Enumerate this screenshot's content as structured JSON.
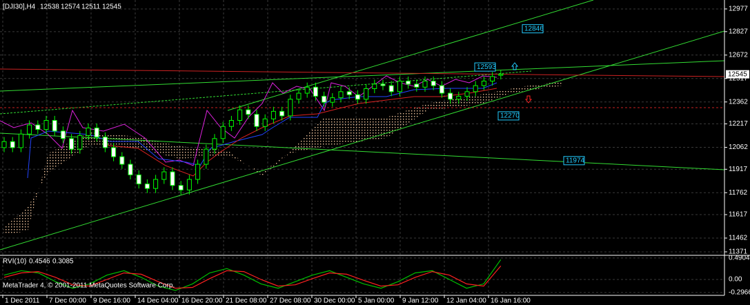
{
  "chart_data": {
    "type": "candlestick",
    "header": {
      "symbol": "[DJI30],H4",
      "open": 12538,
      "high": 12574,
      "low": 12511,
      "close": 12545
    },
    "x_labels": [
      "1 Dec 2011",
      "7 Dec 00:00",
      "9 Dec 16:00",
      "14 Dec 04:00",
      "16 Dec 20:00",
      "21 Dec 08:00",
      "27 Dec 08:00",
      "30 Dec 00:00",
      "5 Jan 00:00",
      "9 Jan 12:00",
      "12 Jan 04:00",
      "16 Jan 16:00"
    ],
    "open": [
      12060,
      12100,
      12060,
      12150,
      12210,
      12180,
      12240,
      12170,
      12120,
      12050,
      12140,
      12190,
      12130,
      12060,
      12000,
      11950,
      11880,
      11820,
      11790,
      11850,
      11900,
      11810,
      11780,
      11850,
      11950,
      12050,
      12120,
      12200,
      12240,
      12310,
      12280,
      12200,
      12250,
      12300,
      12270,
      12380,
      12420,
      12460,
      12400,
      12360,
      12390,
      12430,
      12410,
      12380,
      12450,
      12480,
      12470,
      12430,
      12500,
      12480,
      12460,
      12500,
      12470,
      12420,
      12380,
      12400,
      12430,
      12470,
      12500,
      12538
    ],
    "high": [
      12130,
      12130,
      12180,
      12240,
      12240,
      12270,
      12270,
      12200,
      12150,
      12170,
      12220,
      12220,
      12160,
      12090,
      12030,
      11980,
      11910,
      11850,
      11880,
      11930,
      11930,
      11840,
      11880,
      11980,
      12080,
      12150,
      12230,
      12270,
      12340,
      12340,
      12310,
      12280,
      12330,
      12330,
      12410,
      12450,
      12490,
      12490,
      12430,
      12420,
      12460,
      12460,
      12440,
      12480,
      12510,
      12510,
      12500,
      12530,
      12530,
      12510,
      12530,
      12530,
      12500,
      12450,
      12430,
      12460,
      12500,
      12530,
      12560,
      12574
    ],
    "low": [
      12030,
      12030,
      12030,
      12120,
      12150,
      12150,
      12140,
      12090,
      12020,
      12020,
      12110,
      12100,
      12030,
      11970,
      11920,
      11850,
      11790,
      11760,
      11760,
      11820,
      11780,
      11750,
      11750,
      11820,
      11920,
      12020,
      12090,
      12170,
      12210,
      12250,
      12170,
      12170,
      12220,
      12240,
      12240,
      12350,
      12390,
      12370,
      12330,
      12330,
      12360,
      12380,
      12350,
      12350,
      12420,
      12440,
      12400,
      12400,
      12450,
      12430,
      12430,
      12440,
      12390,
      12350,
      12350,
      12370,
      12400,
      12440,
      12470,
      12511
    ],
    "close": [
      12100,
      12060,
      12150,
      12210,
      12180,
      12240,
      12170,
      12120,
      12050,
      12140,
      12190,
      12130,
      12060,
      12000,
      11950,
      11880,
      11820,
      11790,
      11850,
      11900,
      11810,
      11780,
      11850,
      11950,
      12050,
      12120,
      12200,
      12240,
      12310,
      12280,
      12200,
      12250,
      12300,
      12270,
      12380,
      12420,
      12460,
      12400,
      12360,
      12390,
      12430,
      12410,
      12380,
      12450,
      12480,
      12470,
      12430,
      12500,
      12480,
      12460,
      12500,
      12470,
      12420,
      12380,
      12400,
      12430,
      12470,
      12500,
      12530,
      12545
    ],
    "ylim": [
      11348,
      13027
    ],
    "yticks": [
      12977,
      12827,
      12672,
      12517,
      12362,
      12217,
      12062,
      11917,
      11762,
      11617,
      11462,
      11371
    ],
    "grid": true,
    "bull_color": "#00ff00",
    "bear_color": "#ffffff",
    "current_price": 12545,
    "price_labels": [
      12846,
      12593,
      12270,
      11974
    ],
    "rvi": {
      "title": "RVI(10)",
      "printed": [
        0.4546,
        0.3085
      ],
      "main": [
        0.1,
        0.2,
        0.15,
        -0.05,
        -0.2,
        -0.1,
        0.1,
        0.2,
        0.05,
        -0.15,
        -0.25,
        -0.1,
        0.15,
        0.25,
        0.1,
        -0.1,
        -0.2,
        -0.05,
        0.1,
        0.2,
        0.05,
        -0.1,
        -0.2,
        -0.05,
        0.15,
        0.2,
        0.0,
        -0.2,
        -0.1,
        0.4546
      ],
      "signal": [
        0.05,
        0.15,
        0.18,
        0.05,
        -0.12,
        -0.15,
        0.0,
        0.15,
        0.12,
        -0.05,
        -0.2,
        -0.18,
        0.02,
        0.2,
        0.18,
        0.0,
        -0.15,
        -0.12,
        0.02,
        0.15,
        0.12,
        -0.02,
        -0.15,
        -0.12,
        0.05,
        0.18,
        0.1,
        -0.1,
        -0.15,
        0.3085
      ],
      "main_color": "#00c000",
      "signal_color": "#ff2020",
      "ylim": [
        -0.33,
        0.52
      ],
      "yticks": [
        0.4904,
        {
          "value": 0,
          "label": "0.00"
        },
        -0.2966
      ]
    },
    "copyright": "MetaTrader 4, © 2001-2011 MetaQuotes Software Corp."
  }
}
